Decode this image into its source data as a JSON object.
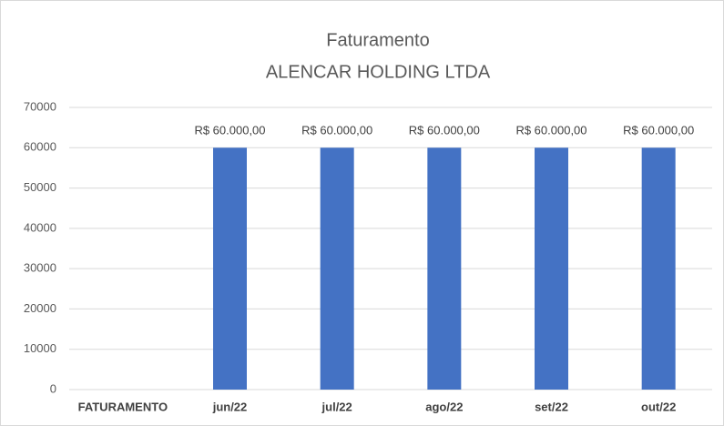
{
  "chart_data": {
    "type": "bar",
    "title": "Faturamento",
    "subtitle": "ALENCAR HOLDING LTDA",
    "categories": [
      "FATURAMENTO",
      "jun/22",
      "jul/22",
      "ago/22",
      "set/22",
      "out/22"
    ],
    "values": [
      null,
      60000,
      60000,
      60000,
      60000,
      60000
    ],
    "value_labels": [
      null,
      "R$ 60.000,00",
      "R$ 60.000,00",
      "R$ 60.000,00",
      "R$ 60.000,00",
      "R$ 60.000,00"
    ],
    "color": "#4472c4",
    "ylim": [
      0,
      70000
    ],
    "yticks": [
      0,
      10000,
      20000,
      30000,
      40000,
      50000,
      60000,
      70000
    ],
    "grid": true
  }
}
